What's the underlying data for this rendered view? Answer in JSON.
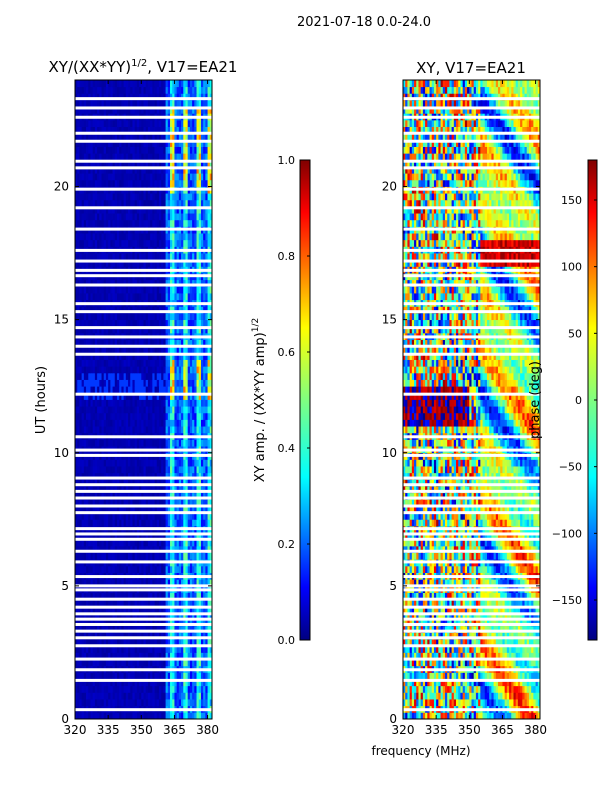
{
  "figure": {
    "suptitle": "2021-07-18 0.0-24.0",
    "xlabel": "frequency (MHz)"
  },
  "colors": {
    "jet": [
      "#000080",
      "#0000ff",
      "#0080ff",
      "#00ffff",
      "#80ff80",
      "#ffff00",
      "#ff8000",
      "#ff0000",
      "#800000"
    ],
    "frame": "#000000",
    "gap": "#ffffff"
  },
  "chart_data": [
    {
      "type": "heatmap",
      "title": "XY/(XX*YY)",
      "title_sup": "1/2",
      "title_suffix": ", V17=EA21",
      "xlabel": "",
      "ylabel": "UT (hours)",
      "xlim": [
        320,
        382
      ],
      "ylim": [
        0,
        24
      ],
      "xticks": [
        320,
        335,
        350,
        365,
        380
      ],
      "xtick_labels": [
        "320",
        "335",
        "350",
        "365",
        "380"
      ],
      "yticks": [
        0,
        5,
        10,
        15,
        20
      ],
      "ytick_labels": [
        "0",
        "5",
        "10",
        "15",
        "20"
      ],
      "description": "Mostly near-zero amplitude; elevated amplitude in narrow channels near 364, 370, 376 and 381 MHz, strongest near 12-13 h and 20-23 h",
      "bright_channels_mhz": [
        364,
        370,
        376,
        381
      ],
      "colorbar": {
        "label": "XY amp. / (XX*YY amp)",
        "label_sup": "1/2",
        "vmin": 0.0,
        "vmax": 1.0,
        "ticks": [
          0.0,
          0.2,
          0.4,
          0.6,
          0.8,
          1.0
        ],
        "tick_labels": [
          "0.0",
          "0.2",
          "0.4",
          "0.6",
          "0.8",
          "1.0"
        ]
      }
    },
    {
      "type": "heatmap",
      "title": "XY, V17=EA21",
      "xlabel": "",
      "ylabel": "",
      "xlim": [
        320,
        382
      ],
      "ylim": [
        0,
        24
      ],
      "xticks": [
        320,
        335,
        350,
        365,
        380
      ],
      "xtick_labels": [
        "320",
        "335",
        "350",
        "365",
        "380"
      ],
      "yticks": [
        0,
        5,
        10,
        15,
        20
      ],
      "ytick_labels": [
        "0",
        "5",
        "10",
        "15",
        "20"
      ],
      "description": "Noisy phase pattern spanning the full range with smooth wrapping structures above 355 MHz",
      "colorbar": {
        "label": "phase (deg)",
        "vmin": -180,
        "vmax": 180,
        "ticks": [
          -150,
          -100,
          -50,
          0,
          50,
          100,
          150
        ],
        "tick_labels": [
          "−150",
          "−100",
          "−50",
          "0",
          "50",
          "100",
          "150"
        ]
      }
    }
  ],
  "gap_hours": [
    0.35,
    1.45,
    1.85,
    2.25,
    2.75,
    3.05,
    3.3,
    3.55,
    3.75,
    3.95,
    4.2,
    4.5,
    4.85,
    5.0,
    5.35,
    5.9,
    6.3,
    6.75,
    6.95,
    7.15,
    7.75,
    8.0,
    8.3,
    8.55,
    8.8,
    9.05,
    9.9,
    10.1,
    10.6,
    12.2,
    13.7,
    14.0,
    14.35,
    14.7,
    15.3,
    15.6,
    16.3,
    16.65,
    16.85,
    17.2,
    17.6,
    18.4,
    19.2,
    19.9,
    20.7,
    20.95,
    21.7,
    22.0,
    22.6,
    22.95,
    23.3
  ]
}
